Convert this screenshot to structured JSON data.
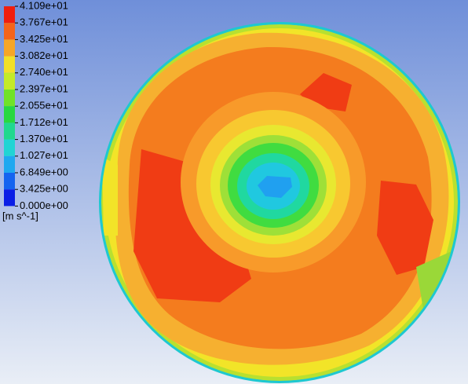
{
  "legend": {
    "tick_labels": [
      "4.109e+01",
      "3.767e+01",
      "3.425e+01",
      "3.082e+01",
      "2.740e+01",
      "2.397e+01",
      "2.055e+01",
      "1.712e+01",
      "1.370e+01",
      "1.027e+01",
      "6.849e+00",
      "3.425e+00",
      "0.000e+00"
    ],
    "unit": "[m s^-1]"
  }
}
